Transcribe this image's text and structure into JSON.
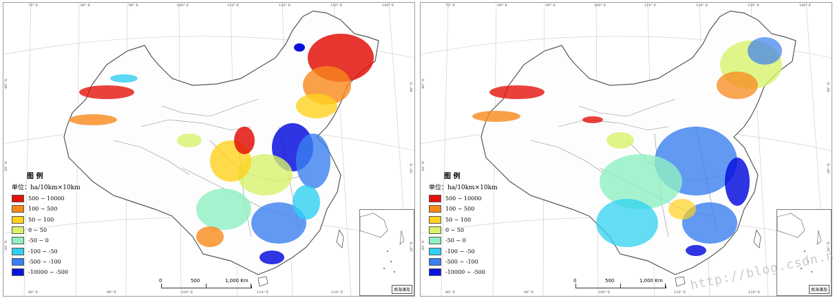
{
  "panels": [
    {
      "id": "left",
      "lon_labels_top": [
        "70° E",
        "80° E",
        "90° E",
        "100° E",
        "110° E",
        "120° E",
        "130° E",
        "140° E"
      ],
      "lon_labels_bottom": [
        "80° E",
        "90° E",
        "100° E",
        "110° E",
        "120° E"
      ],
      "lat_labels_left": [
        "40° N",
        "30° N",
        "20° N"
      ],
      "lat_labels_right": [
        "40° N",
        "30° N",
        "20° N"
      ],
      "legend": {
        "title": "图 例",
        "unit": "单位：ha/10km×10km",
        "items": [
          {
            "label": "500 ~ 10000",
            "color": "#e3120b"
          },
          {
            "label": "100 ~ 500",
            "color": "#f7881c"
          },
          {
            "label": "50 ~ 100",
            "color": "#ffd21e"
          },
          {
            "label": "0 ~ 50",
            "color": "#d7f26b"
          },
          {
            "label": "-50 ~ 0",
            "color": "#8ff0c2"
          },
          {
            "label": "-100 ~ -50",
            "color": "#2fd0f0"
          },
          {
            "label": "-500 ~ -100",
            "color": "#3a7ff0"
          },
          {
            "label": "-10000 ~ -500",
            "color": "#0a12dd"
          }
        ]
      },
      "scale": {
        "ticks": [
          "0",
          "500",
          "1,000 Km"
        ]
      },
      "inset_title": "南海诸岛"
    },
    {
      "id": "right",
      "lon_labels_top": [
        "70° E",
        "80° E",
        "90° E",
        "100° E",
        "110° E",
        "120° E",
        "130° E",
        "140° E"
      ],
      "lon_labels_bottom": [
        "80° E",
        "90° E",
        "100° E",
        "110° E",
        "120° E"
      ],
      "lat_labels_left": [
        "40° N",
        "30° N",
        "20° N"
      ],
      "lat_labels_right": [
        "40° N",
        "30° N",
        "20° N"
      ],
      "legend": {
        "title": "图 例",
        "unit": "单位：ha/10km×10km",
        "items": [
          {
            "label": "500 ~ 10000",
            "color": "#e3120b"
          },
          {
            "label": "100 ~ 500",
            "color": "#f7881c"
          },
          {
            "label": "50 ~ 100",
            "color": "#ffd21e"
          },
          {
            "label": "0 ~ 50",
            "color": "#d7f26b"
          },
          {
            "label": "-50 ~ 0",
            "color": "#8ff0c2"
          },
          {
            "label": "-100 ~ -50",
            "color": "#2fd0f0"
          },
          {
            "label": "-500 ~ -100",
            "color": "#3a7ff0"
          },
          {
            "label": "-10000 ~ -500",
            "color": "#0a12dd"
          }
        ]
      },
      "scale": {
        "ticks": [
          "0",
          "500",
          "1,000 Km"
        ]
      },
      "inset_title": "南海诸岛"
    }
  ],
  "watermark": "http://blog.csdn.net/ds_l"
}
